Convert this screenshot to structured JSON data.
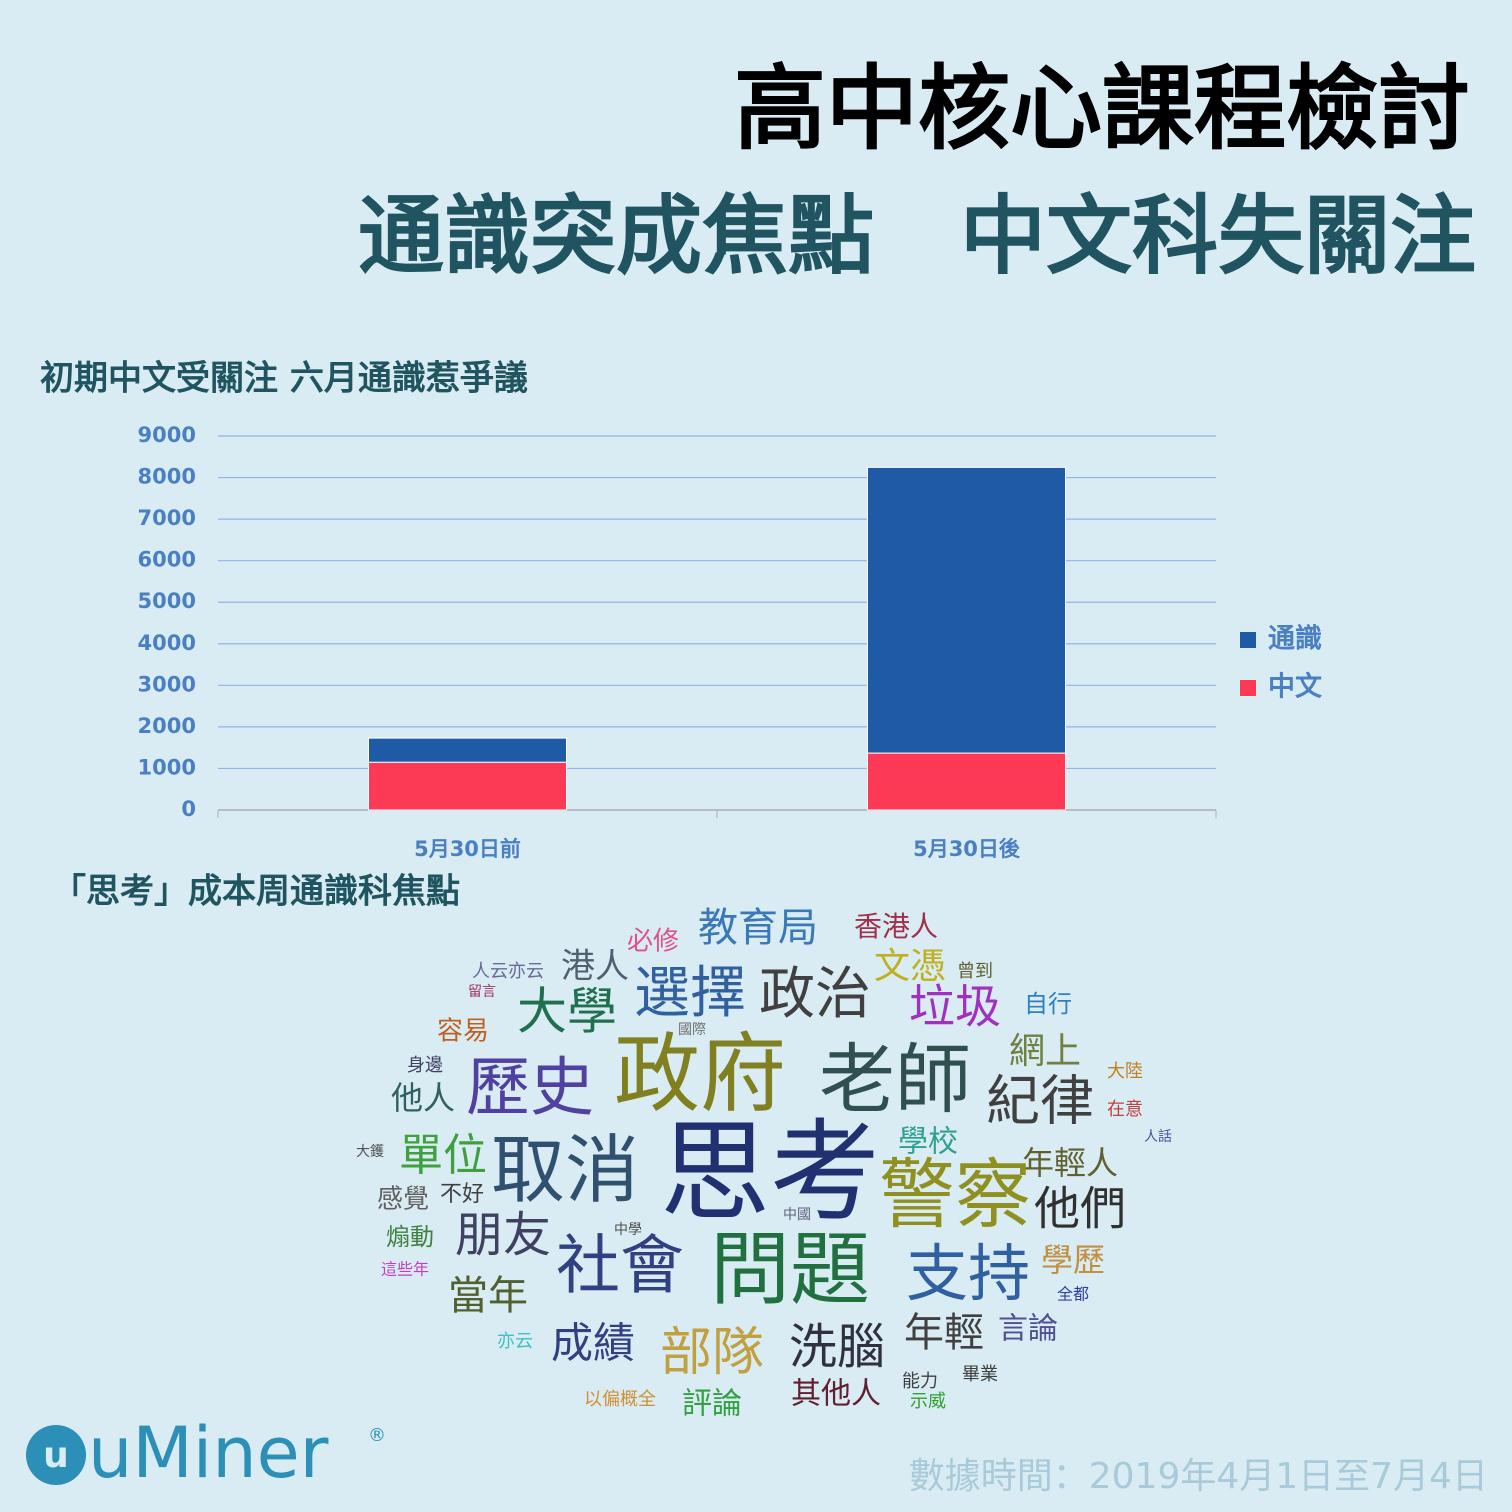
{
  "title": "高中核心課程檢討",
  "subtitle": "通識突成焦點　中文科失關注",
  "chart_data": {
    "type": "stacked_bar",
    "title": "初期中文受關注 六月通識惹爭議",
    "categories": [
      "5月30日前",
      "5月30日後"
    ],
    "series": [
      {
        "name": "中文",
        "color": "#fc3a56",
        "values": [
          1150,
          1370
        ]
      },
      {
        "name": "通識",
        "color": "#1f5aa6",
        "values": [
          580,
          6875
        ]
      }
    ],
    "ylim": [
      0,
      9000
    ],
    "yticks": [
      0,
      1000,
      2000,
      3000,
      4000,
      5000,
      6000,
      7000,
      8000,
      9000
    ],
    "grid": true,
    "legend": "right"
  },
  "word_cloud": {
    "title": "「思考」成本周通識科焦點",
    "words": [
      {
        "text": "教育局",
        "color": "#3a78b6"
      },
      {
        "text": "香港人",
        "color": "#a0304a"
      },
      {
        "text": "必修",
        "color": "#e0508a"
      },
      {
        "text": "人云亦云",
        "color": "#6a6a9a"
      },
      {
        "text": "港人",
        "color": "#506070"
      },
      {
        "text": "文憑",
        "color": "#c0b020"
      },
      {
        "text": "曾到",
        "color": "#606030"
      },
      {
        "text": "留言",
        "color": "#a03060"
      },
      {
        "text": "大學",
        "color": "#207050"
      },
      {
        "text": "選擇",
        "color": "#3060a0"
      },
      {
        "text": "政治",
        "color": "#404040"
      },
      {
        "text": "垃圾",
        "color": "#a030c0"
      },
      {
        "text": "自行",
        "color": "#3080c0"
      },
      {
        "text": "容易",
        "color": "#c06020"
      },
      {
        "text": "國際",
        "color": "#707070"
      },
      {
        "text": "網上",
        "color": "#708040"
      },
      {
        "text": "身邊",
        "color": "#404060"
      },
      {
        "text": "歷史",
        "color": "#5040a0"
      },
      {
        "text": "政府",
        "color": "#808020"
      },
      {
        "text": "老師",
        "color": "#305050"
      },
      {
        "text": "大陸",
        "color": "#c08020"
      },
      {
        "text": "他人",
        "color": "#306060"
      },
      {
        "text": "紀律",
        "color": "#404040"
      },
      {
        "text": "在意",
        "color": "#c04040"
      },
      {
        "text": "人話",
        "color": "#5050a0"
      },
      {
        "text": "學校",
        "color": "#30a090"
      },
      {
        "text": "大鑊",
        "color": "#505050"
      },
      {
        "text": "單位",
        "color": "#40a040"
      },
      {
        "text": "取消",
        "color": "#305070"
      },
      {
        "text": "思考",
        "color": "#203070"
      },
      {
        "text": "年輕人",
        "color": "#606030"
      },
      {
        "text": "感覺",
        "color": "#606060"
      },
      {
        "text": "不好",
        "color": "#404040"
      },
      {
        "text": "警察",
        "color": "#909020"
      },
      {
        "text": "他們",
        "color": "#303030"
      },
      {
        "text": "煽動",
        "color": "#408040"
      },
      {
        "text": "中學",
        "color": "#505050"
      },
      {
        "text": "中國",
        "color": "#606080"
      },
      {
        "text": "朋友",
        "color": "#404060"
      },
      {
        "text": "這些年",
        "color": "#c040c0"
      },
      {
        "text": "社會",
        "color": "#304080"
      },
      {
        "text": "問題",
        "color": "#207040"
      },
      {
        "text": "支持",
        "color": "#3060a0"
      },
      {
        "text": "學歷",
        "color": "#c09040"
      },
      {
        "text": "全都",
        "color": "#3040a0"
      },
      {
        "text": "當年",
        "color": "#506030"
      },
      {
        "text": "年輕",
        "color": "#404040"
      },
      {
        "text": "言論",
        "color": "#505090"
      },
      {
        "text": "亦云",
        "color": "#40c0c0"
      },
      {
        "text": "成績",
        "color": "#304080"
      },
      {
        "text": "部隊",
        "color": "#c0a040"
      },
      {
        "text": "洗腦",
        "color": "#303040"
      },
      {
        "text": "能力",
        "color": "#404040"
      },
      {
        "text": "畢業",
        "color": "#404040"
      },
      {
        "text": "以偏概全",
        "color": "#d09030"
      },
      {
        "text": "評論",
        "color": "#30a040"
      },
      {
        "text": "其他人",
        "color": "#602030"
      },
      {
        "text": "示威",
        "color": "#30a030"
      }
    ]
  },
  "logo": {
    "name": "uMiner",
    "mark": "®"
  },
  "footer": "數據時間：2019年4月1日至7月4日"
}
